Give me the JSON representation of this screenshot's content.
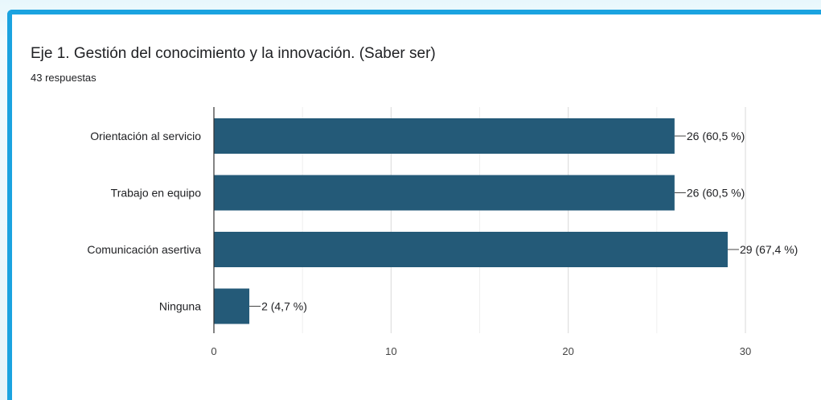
{
  "chart_data": {
    "type": "bar",
    "orientation": "horizontal",
    "title": "Eje 1. Gestión del conocimiento y la innovación. (Saber ser)",
    "subtitle": "43 respuestas",
    "categories": [
      "Orientación al servicio",
      "Trabajo en equipo",
      "Comunicación asertiva",
      "Ninguna"
    ],
    "values": [
      26,
      26,
      29,
      2
    ],
    "data_labels": [
      "26 (60,5 %)",
      "26 (60,5 %)",
      "29 (67,4 %)",
      "2 (4,7 %)"
    ],
    "x_ticks": [
      "0",
      "10",
      "20",
      "30"
    ],
    "xlim": [
      0,
      30
    ],
    "bar_color": "#245a78",
    "grid": true,
    "legend": "none"
  }
}
